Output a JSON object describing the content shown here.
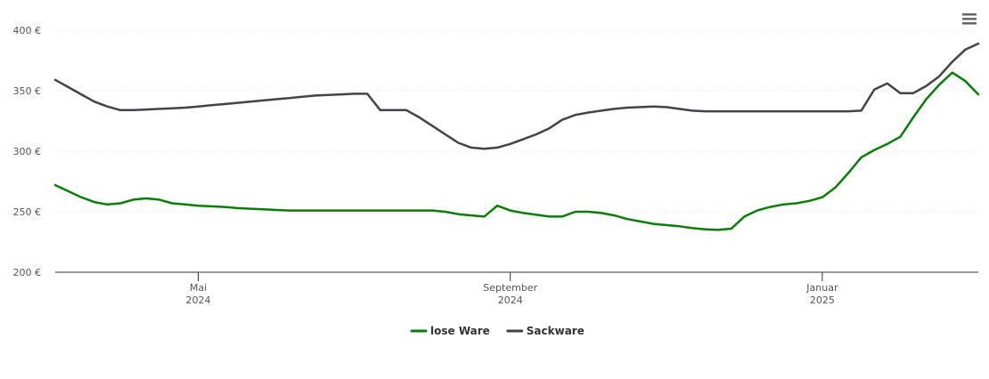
{
  "chart_data": {
    "type": "line",
    "categories": [
      null,
      null,
      null,
      null,
      null,
      null,
      null,
      null,
      null,
      null,
      null,
      "Mai 2024",
      null,
      null,
      null,
      null,
      null,
      null,
      null,
      null,
      null,
      null,
      null,
      null,
      null,
      null,
      null,
      null,
      null,
      null,
      null,
      null,
      null,
      null,
      null,
      "September 2024",
      null,
      null,
      null,
      null,
      null,
      null,
      null,
      null,
      null,
      null,
      null,
      null,
      null,
      null,
      null,
      null,
      null,
      null,
      null,
      null,
      null,
      null,
      null,
      "Januar 2025",
      null,
      null,
      null,
      null,
      null,
      null,
      null,
      null,
      null,
      null,
      null,
      null
    ],
    "series": [
      {
        "name": "lose Ware",
        "color": "#0a7d0a",
        "values": [
          272,
          267,
          262,
          258,
          256,
          257,
          260,
          261,
          260,
          257,
          256,
          255,
          254.5,
          254,
          253,
          252.5,
          252,
          251.5,
          251,
          251,
          251,
          251,
          251,
          251,
          251,
          251,
          251,
          251,
          251,
          251,
          250,
          248,
          247,
          246,
          255,
          251,
          249,
          247.5,
          246,
          246,
          250,
          250,
          249,
          247,
          244,
          242,
          240,
          239,
          238,
          236.5,
          235.5,
          235,
          236,
          246,
          251,
          254,
          256,
          257,
          259,
          262,
          270,
          282,
          295,
          301,
          306,
          312,
          328,
          343,
          355,
          365,
          358,
          347
        ]
      },
      {
        "name": "Sackware",
        "color": "#434348",
        "values": [
          359,
          353,
          347,
          341,
          337,
          334,
          334,
          334.5,
          335,
          335.5,
          336,
          337,
          338,
          339,
          340,
          341,
          342,
          343,
          344,
          345,
          346,
          346.5,
          347,
          347.5,
          347.5,
          334,
          334,
          334,
          328,
          321,
          314,
          307,
          303,
          302,
          303,
          306,
          310,
          314,
          319,
          326,
          330,
          332,
          333.5,
          335,
          336,
          336.5,
          337,
          336.5,
          335,
          333.5,
          333,
          333,
          333,
          333,
          333,
          333,
          333,
          333,
          333,
          333,
          333,
          333,
          333.5,
          351,
          356,
          348,
          348,
          354,
          362,
          374,
          384,
          389
        ]
      }
    ],
    "ylim": [
      200,
      400
    ],
    "yticks": [
      {
        "value": 200,
        "label": "200 €"
      },
      {
        "value": 250,
        "label": "250 €"
      },
      {
        "value": 300,
        "label": "300 €"
      },
      {
        "value": 350,
        "label": "350 €"
      },
      {
        "value": 400,
        "label": "400 €"
      }
    ],
    "grid": true,
    "legend": "bottom"
  }
}
